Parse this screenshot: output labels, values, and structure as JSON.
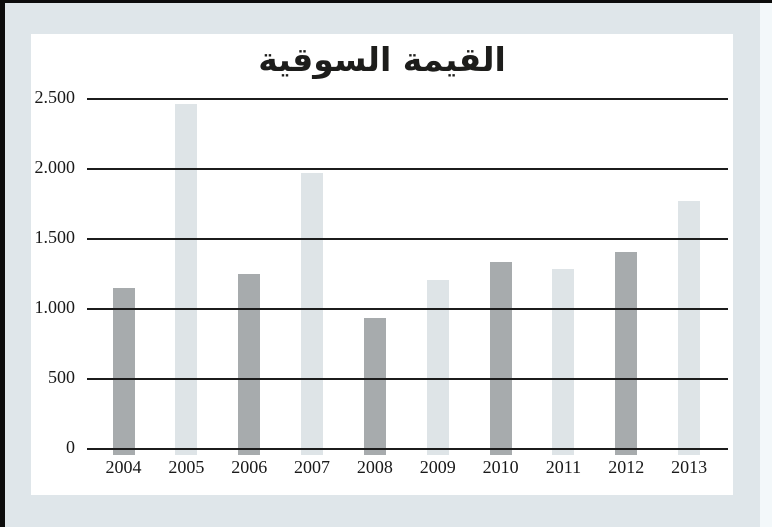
{
  "chart_data": {
    "type": "bar",
    "title": "القيمة السوقية",
    "categories": [
      "2004",
      "2005",
      "2006",
      "2007",
      "2008",
      "2009",
      "2010",
      "2011",
      "2012",
      "2013"
    ],
    "values": [
      1150,
      2465,
      1250,
      1970,
      935,
      1205,
      1335,
      1285,
      1405,
      1770
    ],
    "bar_colors": [
      "#a7abad",
      "#dee4e7",
      "#a7abad",
      "#dee4e7",
      "#a7abad",
      "#dee4e7",
      "#a7abad",
      "#dee4e7",
      "#a7abad",
      "#dee4e7"
    ],
    "xlabel": "",
    "ylabel": "",
    "ylim": [
      0,
      2500
    ],
    "yticks": [
      {
        "value": 0,
        "label": "0"
      },
      {
        "value": 500,
        "label": "500"
      },
      {
        "value": 1000,
        "label": "1.000"
      },
      {
        "value": 1500,
        "label": "1.500"
      },
      {
        "value": 2000,
        "label": "2.000"
      },
      {
        "value": 2500,
        "label": "2.500"
      }
    ],
    "grid": "horizontal",
    "legend_position": "none"
  },
  "colors": {
    "page_background": "#dfe6ea",
    "panel_background": "#ffffff",
    "gridline": "#1c1c1c",
    "text": "#1a1a1a",
    "bar_dark": "#a7abad",
    "bar_light": "#dee4e7",
    "scan_edge": "#0c0c0c"
  }
}
